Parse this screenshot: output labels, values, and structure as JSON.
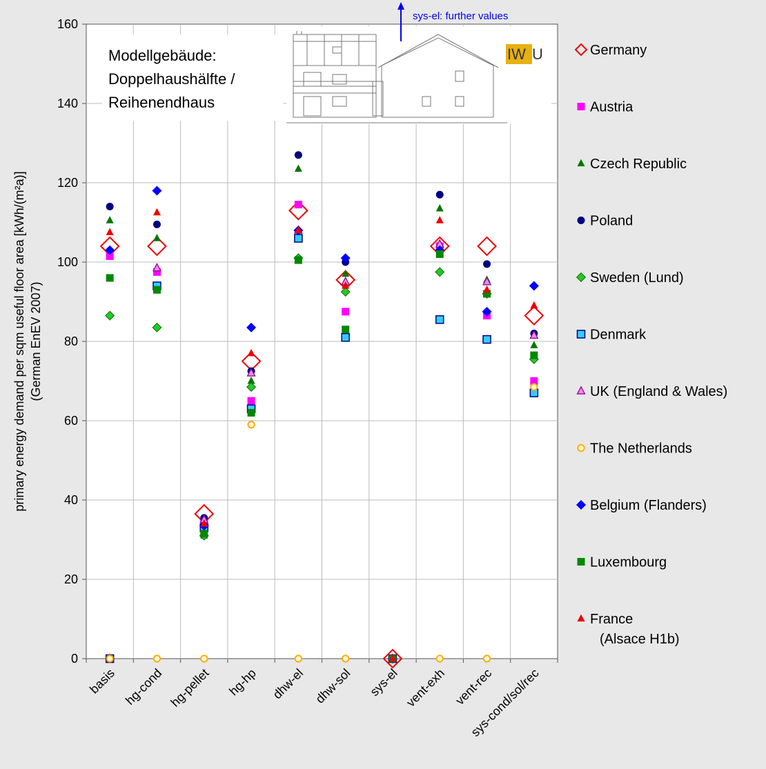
{
  "chart_data": {
    "type": "scatter",
    "categories": [
      "basis",
      "hg-cond",
      "hg-pellet",
      "hg-hp",
      "dhw-el",
      "dhw-sol",
      "sys-el",
      "vent-exh",
      "vent-rec",
      "sys-cond/sol/rec"
    ],
    "ylabel": "primary energy demand per sqm useful floor area [kWh/(m²a)]",
    "ylabel2": "(German EnEV 2007)",
    "ylim": [
      0,
      160
    ],
    "yticks": [
      0,
      20,
      40,
      60,
      80,
      100,
      120,
      140,
      160
    ],
    "grid": true,
    "legend_position": "right",
    "annotation_lines": [
      "Modellgebäude:",
      "Doppelhaushälfte /",
      "Reihenendhaus"
    ],
    "note": "sys-el: further values",
    "logo": {
      "prefix": "IW",
      "suffix": "U",
      "highlight": "#e8b010"
    },
    "series": [
      {
        "name": "Germany",
        "marker": "diamond-open",
        "color": "#ee0000",
        "values": [
          104,
          104,
          36.5,
          75,
          113,
          95.5,
          0,
          104,
          104,
          86.5
        ]
      },
      {
        "name": "Austria",
        "marker": "square",
        "color": "#ff00ff",
        "values": [
          101.5,
          97.5,
          34.5,
          65,
          114.5,
          87.5,
          0,
          104,
          86.5,
          70
        ]
      },
      {
        "name": "Czech Republic",
        "marker": "triangle",
        "color": "#007700",
        "values": [
          110.5,
          106,
          31,
          70,
          123.5,
          97,
          0,
          113.5,
          95.5,
          79
        ]
      },
      {
        "name": "Poland",
        "marker": "circle",
        "color": "#000080",
        "values": [
          114,
          109.5,
          35.5,
          72.5,
          127,
          100,
          0,
          117,
          99.5,
          82
        ]
      },
      {
        "name": "Sweden (Lund)",
        "marker": "diamond",
        "color": "#22cc22",
        "values": [
          86.5,
          83.5,
          31,
          68.5,
          101,
          92.5,
          0,
          97.5,
          92,
          75.5
        ]
      },
      {
        "name": "Denmark",
        "marker": "square-light",
        "color": "#33ccff",
        "values": [
          0,
          94,
          33,
          63,
          106,
          81,
          0,
          85.5,
          80.5,
          67
        ]
      },
      {
        "name": "UK (England & Wales)",
        "marker": "triangle-pink",
        "color": "#ee88ee",
        "values": [
          0,
          98.5,
          35,
          72,
          108,
          95,
          0,
          104.5,
          95,
          81.5
        ]
      },
      {
        "name": "The Netherlands",
        "marker": "circle-open",
        "color": "#ffaa00",
        "values": [
          0,
          0,
          0,
          59,
          0,
          0,
          0,
          0,
          0,
          68.5
        ]
      },
      {
        "name": "Belgium (Flanders)",
        "marker": "diamond",
        "color": "#0000ff",
        "values": [
          103,
          118,
          33.5,
          83.5,
          108,
          101,
          0,
          103,
          87.5,
          94
        ]
      },
      {
        "name": "Luxembourg",
        "marker": "square",
        "color": "#008800",
        "values": [
          96,
          93,
          31.5,
          62,
          100.5,
          83,
          0,
          102,
          92,
          76.5
        ]
      },
      {
        "name": "France\n(Alsace H1b)",
        "marker": "triangle",
        "color": "#ee0000",
        "values": [
          107.5,
          112.5,
          34,
          77,
          108,
          94,
          0,
          110.5,
          93,
          89
        ]
      }
    ]
  }
}
